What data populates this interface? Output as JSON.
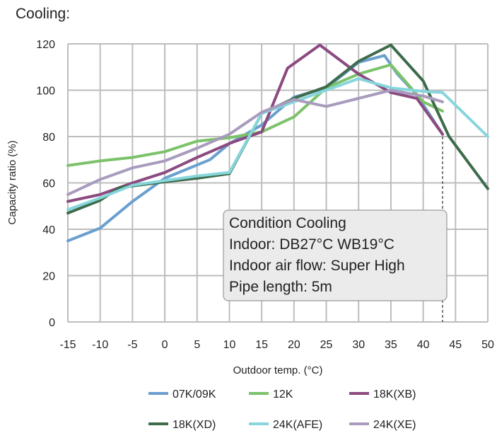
{
  "heading": "Cooling:",
  "chart_data": {
    "type": "line",
    "title": "",
    "xlabel": "Outdoor temp. (°C)",
    "ylabel": "Capacity ratio (%)",
    "xlim": [
      -15,
      50
    ],
    "ylim": [
      0,
      120
    ],
    "x_ticks": [
      -15,
      -10,
      -5,
      0,
      5,
      10,
      15,
      20,
      25,
      30,
      35,
      40,
      45,
      50
    ],
    "y_ticks": [
      0,
      20,
      40,
      60,
      80,
      100,
      120
    ],
    "grid": true,
    "legend_position": "bottom",
    "annotation": {
      "lines": [
        "Condition Cooling",
        "Indoor: DB27°C WB19°C",
        "Indoor air flow: Super High",
        "Pipe length: 5m"
      ]
    },
    "reference_line_x": 43,
    "series": [
      {
        "name": "07K/09K",
        "color": "#6a9fcf",
        "x": [
          -15,
          -10,
          -5,
          0,
          7,
          10,
          15,
          20,
          25,
          30,
          34,
          36,
          39,
          43
        ],
        "y": [
          35,
          40.5,
          52,
          62,
          70,
          77,
          85,
          97,
          101,
          112,
          115,
          107,
          98,
          81
        ]
      },
      {
        "name": "12K",
        "color": "#7cc26a",
        "x": [
          -15,
          -10,
          -5,
          0,
          5,
          10,
          15,
          20,
          25,
          30,
          35,
          40,
          43
        ],
        "y": [
          67.5,
          69.5,
          71,
          73.5,
          78,
          79.5,
          82,
          88.5,
          101,
          107,
          111,
          95,
          91
        ]
      },
      {
        "name": "18K(XB)",
        "color": "#8b4a80",
        "x": [
          -15,
          -10,
          -5,
          0,
          5,
          10,
          15,
          19,
          24,
          30,
          35,
          39,
          43
        ],
        "y": [
          52,
          55,
          60,
          64.5,
          71,
          77,
          82,
          109.5,
          119.5,
          107,
          99,
          96.5,
          81
        ]
      },
      {
        "name": "18K(XD)",
        "color": "#3e6b4c",
        "x": [
          -15,
          -10,
          -7,
          0,
          5,
          10,
          15,
          20,
          25,
          30,
          35,
          40,
          44,
          50
        ],
        "y": [
          47,
          52.5,
          58,
          60.5,
          62,
          64,
          90,
          96.5,
          101.5,
          112.5,
          119.5,
          104,
          80,
          57.5
        ]
      },
      {
        "name": "24K(AFE)",
        "color": "#86d6dc",
        "x": [
          -15,
          -10,
          -5,
          0,
          5,
          10,
          15,
          20,
          25,
          30,
          35,
          40,
          43,
          50
        ],
        "y": [
          48.5,
          53.5,
          59,
          61,
          63,
          64.5,
          90,
          95,
          100,
          105,
          101,
          99.5,
          99,
          80
        ]
      },
      {
        "name": "24K(XE)",
        "color": "#a89bbd",
        "x": [
          -15,
          -10,
          -5,
          0,
          5,
          10,
          15,
          20,
          25,
          30,
          35,
          40,
          43
        ],
        "y": [
          55,
          61.5,
          66.5,
          69.5,
          75,
          81,
          90.5,
          96,
          93,
          96.5,
          100,
          97.5,
          95
        ]
      }
    ]
  }
}
